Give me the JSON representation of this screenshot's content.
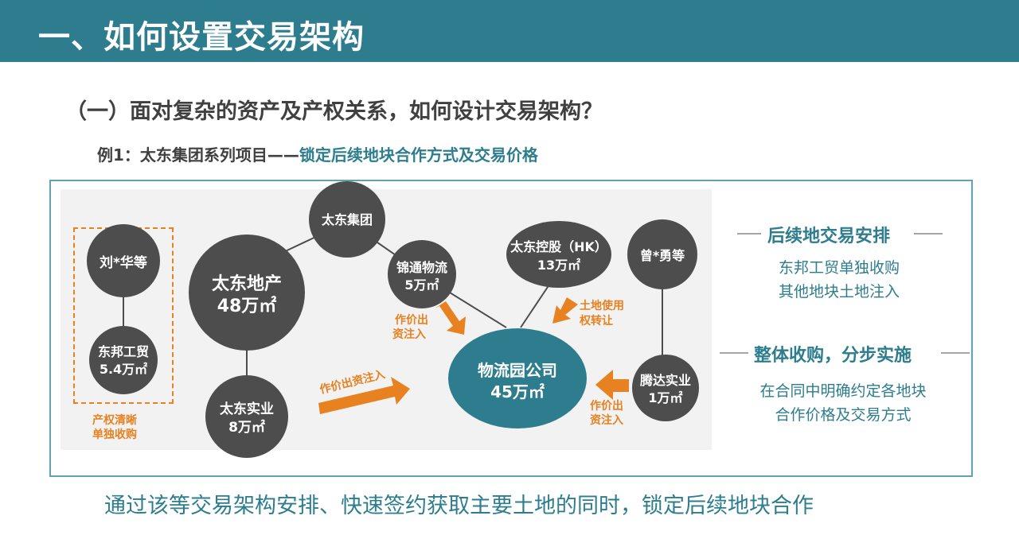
{
  "header": {
    "title": "一、如何设置交易架构"
  },
  "subtitle": "（一）面对复杂的资产及产权关系，如何设计交易架构？",
  "example": {
    "prefix": "例1：太东集团系列项目——",
    "highlight": "锁定后续地块合作方式及交易价格"
  },
  "diagram": {
    "nodes": {
      "liu": {
        "line1": "刘*华等"
      },
      "dongbang": {
        "line1": "东邦工贸",
        "line2": "5.4万㎡"
      },
      "dichan": {
        "line1": "太东地产",
        "line2": "48万㎡"
      },
      "shiye": {
        "line1": "太东实业",
        "line2": "8万㎡"
      },
      "jituan": {
        "line1": "太东集团"
      },
      "jintong": {
        "line1": "锦通物流",
        "line2": "5万㎡"
      },
      "konggu": {
        "line1": "太东控股（HK）",
        "line2": "13万㎡"
      },
      "zeng": {
        "line1": "曾*勇等"
      },
      "tengda": {
        "line1": "腾达实业",
        "line2": "1万㎡"
      },
      "wuliu": {
        "line1": "物流园公司",
        "line2": "45万㎡"
      }
    },
    "labels": {
      "clear_title": "产权清晰",
      "clear_title2": "单独收购",
      "invest_main": "作价出资注入",
      "invest_left_1": "作价出",
      "invest_left_2": "资注入",
      "land_use_1": "土地使用",
      "land_use_2": "权转让",
      "invest_right_1": "作价出",
      "invest_right_2": "资注入"
    },
    "colors": {
      "dark_node": "#4d4d4d",
      "teal_node": "#2d7d8e",
      "arrow": "#e8811f"
    }
  },
  "right_panel": {
    "section1": {
      "heading": "后续地交易安排",
      "line1": "东邦工贸单独收购",
      "line2": "其他地块土地注入"
    },
    "section2": {
      "heading": "整体收购，分步实施",
      "line1": "在合同中明确约定各地块",
      "line2": "合作价格及交易方式"
    }
  },
  "footer": "通过该等交易架构安排、快速签约获取主要土地的同时，锁定后续地块合作"
}
